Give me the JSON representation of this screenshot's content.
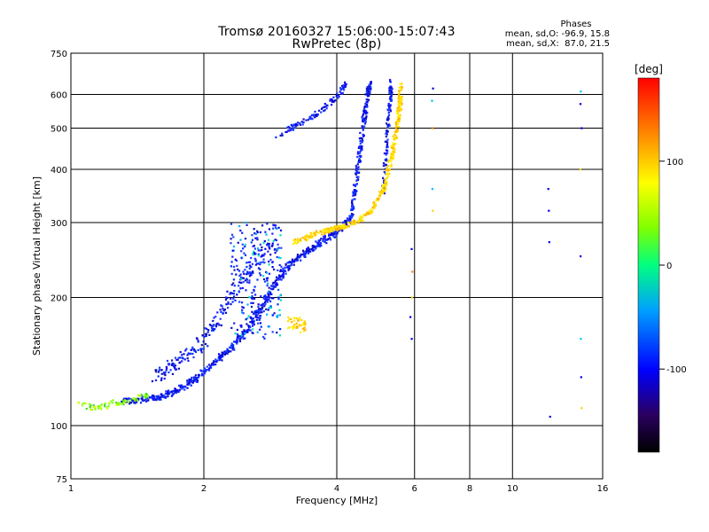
{
  "chart_data": {
    "type": "scatter",
    "title": "Tromsø 20160327 15:06:00-15:07:43",
    "subtitle": "RwPretec (8p)",
    "xlabel": "Frequency [MHz]",
    "ylabel": "Stationary phase Virtual Height [km]",
    "x_scale": "log",
    "y_scale": "log",
    "xlim": [
      1,
      16
    ],
    "ylim": [
      75,
      750
    ],
    "grid": true,
    "x_ticks": [
      1,
      2,
      4,
      6,
      8,
      10,
      16
    ],
    "y_ticks": [
      75,
      100,
      200,
      300,
      400,
      500,
      600,
      750
    ],
    "colorbar": {
      "label": "[deg]",
      "range": [
        -180,
        180
      ],
      "ticks": [
        100,
        0,
        -100
      ]
    },
    "phase_stats": {
      "heading": "Phases",
      "line_o": "mean, sd,O: -96.9, 15.8",
      "line_x": "mean, sd,X:  87.0, 21.5"
    },
    "o_trace_main": [
      [
        1.3,
        114
      ],
      [
        1.45,
        115
      ],
      [
        1.6,
        117
      ],
      [
        1.75,
        121
      ],
      [
        1.9,
        128
      ],
      [
        2.1,
        140
      ],
      [
        2.3,
        152
      ],
      [
        2.5,
        167
      ],
      [
        2.7,
        190
      ],
      [
        2.9,
        215
      ],
      [
        3.1,
        238
      ],
      [
        3.4,
        256
      ],
      [
        3.7,
        270
      ],
      [
        4.0,
        286
      ],
      [
        4.3,
        305
      ]
    ],
    "o_trace_upper": [
      [
        4.3,
        305
      ],
      [
        4.4,
        360
      ],
      [
        4.5,
        430
      ],
      [
        4.6,
        520
      ],
      [
        4.7,
        600
      ],
      [
        4.75,
        640
      ]
    ],
    "o_branch_lower": [
      [
        1.55,
        130
      ],
      [
        1.7,
        138
      ],
      [
        1.9,
        150
      ],
      [
        2.1,
        170
      ],
      [
        2.3,
        200
      ],
      [
        2.6,
        240
      ],
      [
        2.9,
        270
      ]
    ],
    "o_branch_upper": [
      [
        2.9,
        478
      ],
      [
        3.2,
        505
      ],
      [
        3.5,
        530
      ],
      [
        3.8,
        565
      ],
      [
        4.1,
        610
      ],
      [
        4.2,
        640
      ]
    ],
    "o_tail": [
      [
        5.1,
        350
      ],
      [
        5.15,
        420
      ],
      [
        5.2,
        480
      ],
      [
        5.25,
        540
      ],
      [
        5.3,
        600
      ],
      [
        5.3,
        640
      ]
    ],
    "x_trace": [
      [
        3.2,
        270
      ],
      [
        3.6,
        283
      ],
      [
        4.0,
        291
      ],
      [
        4.4,
        300
      ],
      [
        4.8,
        320
      ],
      [
        5.1,
        360
      ],
      [
        5.3,
        420
      ],
      [
        5.45,
        490
      ],
      [
        5.55,
        560
      ],
      [
        5.6,
        640
      ]
    ],
    "low_patch": [
      [
        1.05,
        112
      ],
      [
        1.15,
        110
      ],
      [
        1.25,
        113
      ],
      [
        1.35,
        114
      ],
      [
        1.5,
        118
      ]
    ],
    "spread_patch": {
      "x": [
        3.1,
        3.4
      ],
      "y": [
        165,
        180
      ]
    },
    "spread_region": {
      "x": [
        2.3,
        3.0
      ],
      "y": [
        160,
        300
      ]
    },
    "isolated_columns": [
      {
        "x": 6.6,
        "y": [
          320,
          360,
          500,
          580,
          620
        ]
      },
      {
        "x": 5.9,
        "y": [
          160,
          180,
          200,
          230,
          260
        ]
      },
      {
        "x": 14.3,
        "y": [
          110,
          130,
          160,
          250,
          400,
          500,
          570,
          610
        ]
      },
      {
        "x": 12.1,
        "y": [
          105,
          270,
          320,
          360
        ]
      }
    ]
  }
}
